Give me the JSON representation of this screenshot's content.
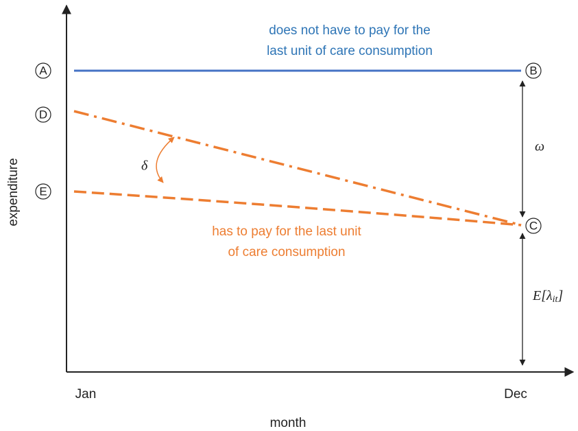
{
  "axes": {
    "y_label": "expenditure",
    "x_label": "month",
    "x_start": "Jan",
    "x_end": "Dec"
  },
  "points": {
    "A": "A",
    "B": "B",
    "C": "C",
    "D": "D",
    "E": "E"
  },
  "notes": {
    "blue": [
      "does not have to pay for the",
      "last unit of care consumption"
    ],
    "orange": [
      "has to pay for the last unit",
      "of care consumption"
    ]
  },
  "symbols": {
    "delta": "δ",
    "omega": "ω",
    "expectation": {
      "main": "E[λ",
      "subscript": "it",
      "close": "]"
    }
  }
}
